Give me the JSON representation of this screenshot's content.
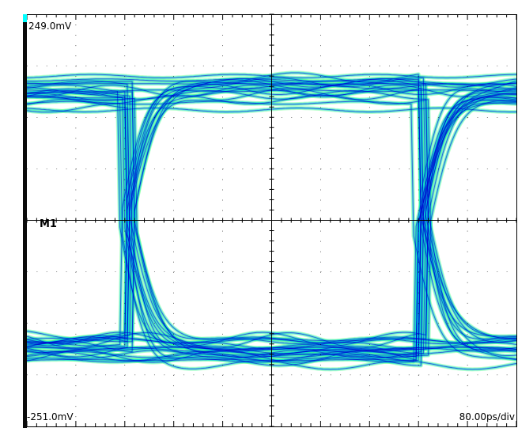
{
  "chart_data": {
    "type": "eye-diagram",
    "vertical": {
      "top_label": "249.0mV",
      "bottom_label": "-251.0mV",
      "top_mV": 249.0,
      "bottom_mV": -251.0,
      "divisions": 8
    },
    "horizontal": {
      "scale_label": "80.00ps/div",
      "ps_per_div": 80,
      "divisions": 10
    },
    "marker": {
      "label": "M1",
      "level_mV": 0
    },
    "eye_levels_mV": {
      "high": 156,
      "low": -156
    },
    "crossing_times_ps": [
      163,
      643
    ],
    "grid": true,
    "colors": {
      "background": "#ffffff",
      "grid": "#000000",
      "trace_low_density": "#33ff66",
      "trace_mid_density": "#00c8f0",
      "trace_high_density": "#0000cc",
      "left_bar": "#0a0a0a",
      "top_corner": "#00ffff"
    }
  }
}
